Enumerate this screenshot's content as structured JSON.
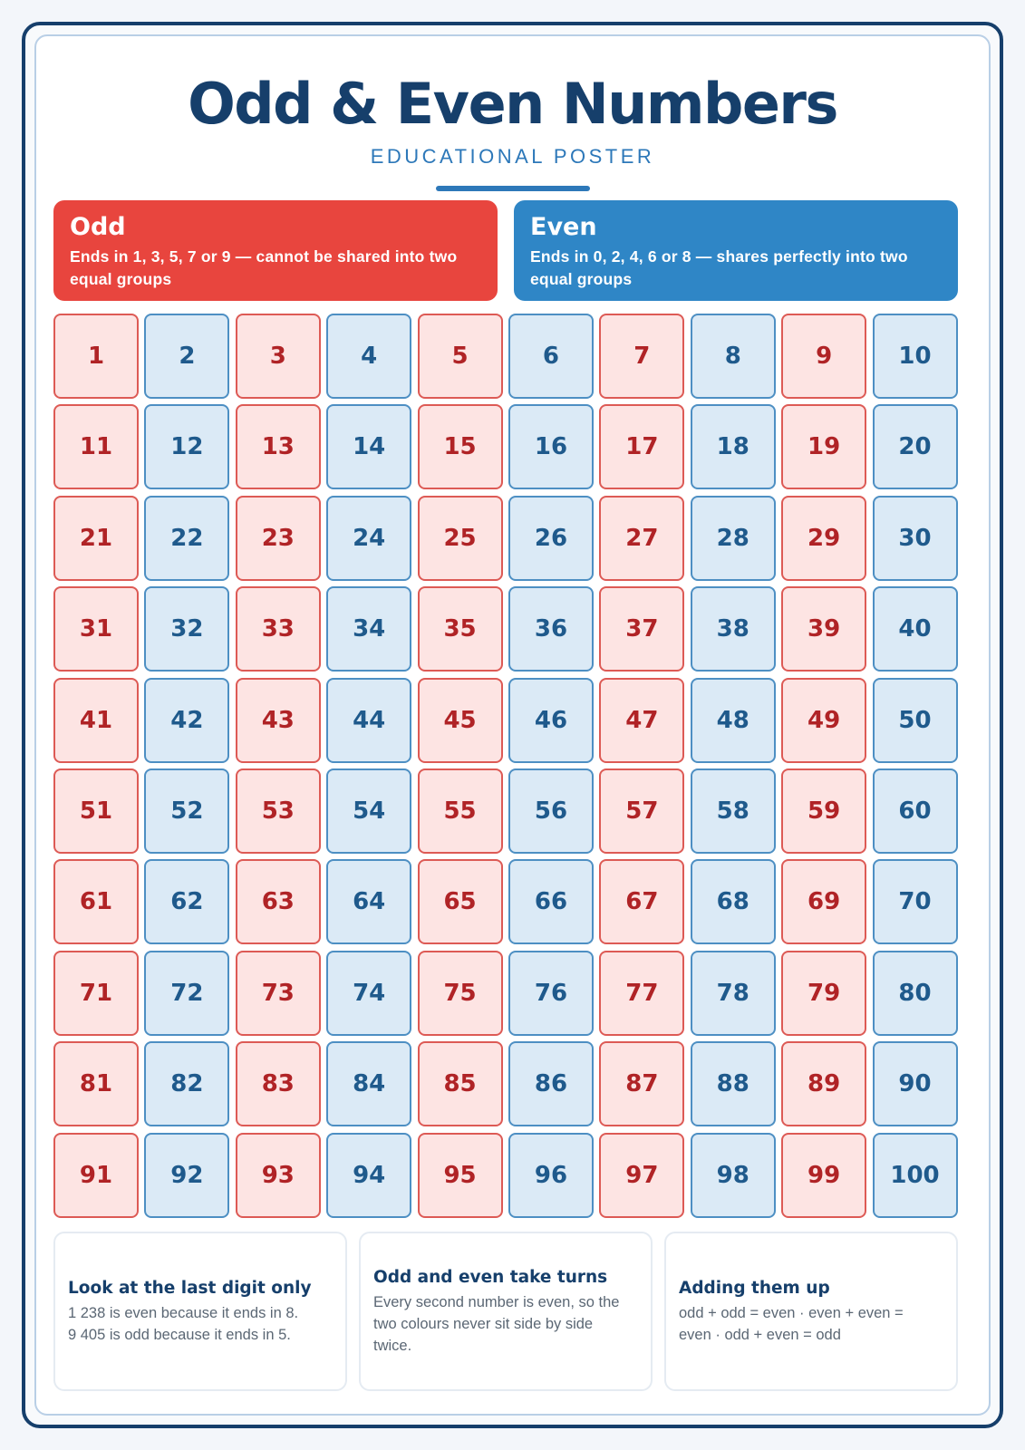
{
  "header": {
    "title": "Odd & Even Numbers",
    "subtitle": "EDUCATIONAL POSTER"
  },
  "legend": {
    "odd": {
      "title": "Odd",
      "text": "Ends in 1, 3, 5, 7 or 9 — cannot be shared into two equal groups",
      "color": "#e8453e"
    },
    "even": {
      "title": "Even",
      "text": "Ends in 0, 2, 4, 6 or 8 — shares perfectly into two equal groups",
      "color": "#2f86c6"
    }
  },
  "grid": {
    "start": 1,
    "end": 100,
    "columns": 10,
    "odd_color": "#b02326",
    "even_color": "#1f5a8c"
  },
  "tips": [
    {
      "title": "Look at the last digit only",
      "lines": [
        "1 238 is even because it ends in 8.",
        "9 405 is odd because it ends in 5."
      ]
    },
    {
      "title": "Odd and even take turns",
      "lines": [
        "Every second number is even, so the",
        "two colours never sit side by side",
        "twice."
      ]
    },
    {
      "title": "Adding them up",
      "lines": [
        "odd + odd = even  ·  even + even =",
        "even  ·  odd + even = odd"
      ]
    }
  ]
}
